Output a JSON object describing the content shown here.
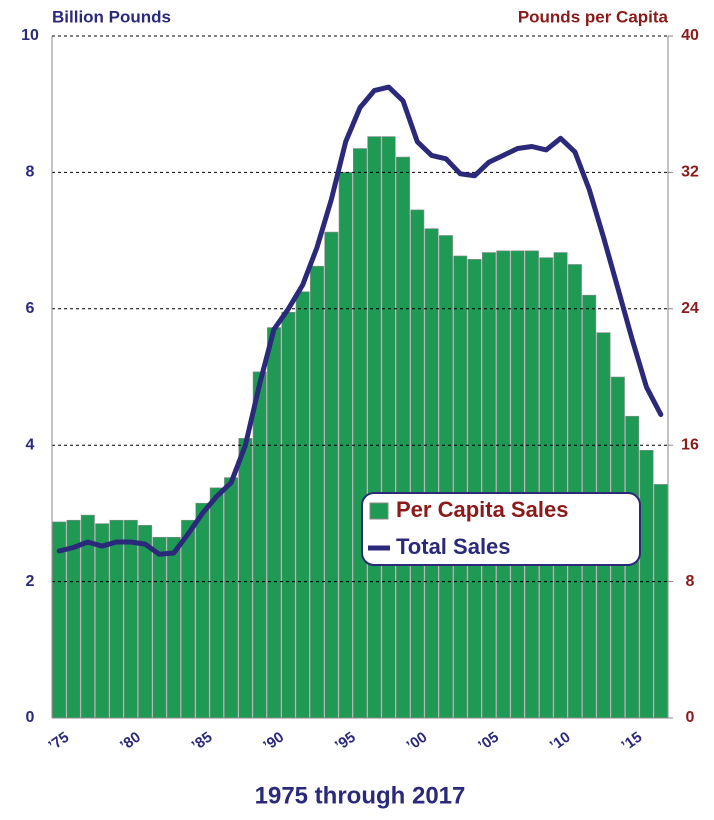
{
  "chart_data": {
    "type": "bar_line",
    "title": "1975 through 2017",
    "ylabel": "Billion Pounds",
    "y2label": "Pounds per Capita",
    "categories": [
      "’75",
      null,
      null,
      null,
      null,
      "’80",
      null,
      null,
      null,
      null,
      "’85",
      null,
      null,
      null,
      null,
      "’90",
      null,
      null,
      null,
      null,
      "’95",
      null,
      null,
      null,
      null,
      "’00",
      null,
      null,
      null,
      null,
      "’05",
      null,
      null,
      null,
      null,
      "’10",
      null,
      null,
      null,
      null,
      "’15",
      null,
      null
    ],
    "series": [
      {
        "name": "Per Capita Sales",
        "color": "#1f9a55",
        "axis": "y2",
        "kind": "bar",
        "values": [
          11.5,
          11.6,
          11.9,
          11.4,
          11.6,
          11.6,
          11.3,
          10.6,
          10.6,
          11.6,
          12.6,
          13.5,
          14.1,
          16.4,
          20.3,
          22.9,
          23.8,
          25,
          26.5,
          28.5,
          32,
          33.4,
          34.1,
          34.1,
          32.9,
          29.8,
          28.7,
          28.3,
          27.1,
          26.9,
          27.3,
          27.4,
          27.4,
          27.4,
          27,
          27.3,
          26.6,
          24.8,
          22.6,
          20,
          17.7,
          15.7,
          13.7
        ]
      },
      {
        "name": "Total Sales",
        "color": "#2b2a7a",
        "axis": "y",
        "kind": "line",
        "values": [
          2.45,
          2.5,
          2.58,
          2.52,
          2.58,
          2.58,
          2.55,
          2.4,
          2.42,
          2.7,
          3.0,
          3.25,
          3.45,
          4.0,
          4.9,
          5.7,
          6.0,
          6.35,
          6.9,
          7.6,
          8.45,
          8.95,
          9.2,
          9.25,
          9.05,
          8.45,
          8.25,
          8.2,
          7.98,
          7.95,
          8.15,
          8.25,
          8.35,
          8.38,
          8.33,
          8.5,
          8.3,
          7.75,
          7.05,
          6.3,
          5.55,
          4.85,
          4.45
        ]
      }
    ],
    "ylim": [
      0,
      10
    ],
    "yticks": [
      0,
      2,
      4,
      6,
      8,
      10
    ],
    "y2lim": [
      0,
      40
    ],
    "y2ticks": [
      0,
      8,
      16,
      24,
      32,
      40
    ],
    "grid": true,
    "legend": "lower right"
  }
}
